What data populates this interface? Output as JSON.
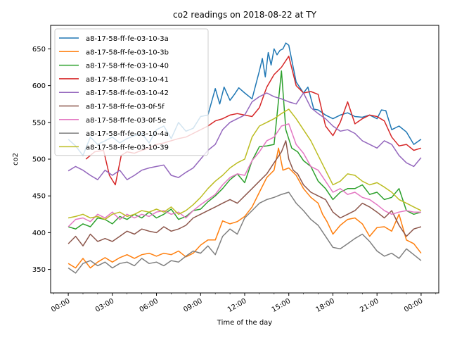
{
  "chart_data": {
    "type": "line",
    "title": "co2 readings on 2018-08-22 at TY",
    "xlabel": "Time of the day",
    "ylabel": "co2",
    "x_unit": "hour",
    "xlim": [
      -1.2,
      25.2
    ],
    "ylim": [
      318,
      682
    ],
    "x_ticks": [
      {
        "value": 0,
        "label": "00:00"
      },
      {
        "value": 3,
        "label": "03:00"
      },
      {
        "value": 6,
        "label": "06:00"
      },
      {
        "value": 9,
        "label": "09:00"
      },
      {
        "value": 12,
        "label": "12:00"
      },
      {
        "value": 15,
        "label": "15:00"
      },
      {
        "value": 18,
        "label": "18:00"
      },
      {
        "value": 21,
        "label": "21:00"
      },
      {
        "value": 24,
        "label": "00:00"
      }
    ],
    "y_ticks": [
      350,
      400,
      450,
      500,
      550,
      600,
      650
    ],
    "grid": false,
    "legend_position": "upper-left",
    "series": [
      {
        "name": "a8-17-58-ff-fe-03-10-3a",
        "color": "#1f77b4",
        "x": [
          0,
          0.5,
          1,
          1.5,
          2,
          2.5,
          3,
          3.5,
          4,
          4.5,
          5,
          5.5,
          6,
          6.5,
          7,
          7.5,
          8,
          8.5,
          9,
          9.5,
          10,
          10.3,
          10.6,
          11,
          11.3,
          11.6,
          12,
          12.5,
          13,
          13.2,
          13.4,
          13.6,
          13.8,
          14,
          14.2,
          14.4,
          14.6,
          14.8,
          15,
          15.5,
          16,
          16.3,
          16.7,
          17,
          17.5,
          18,
          18.5,
          19,
          19.5,
          20,
          20.5,
          21,
          21.3,
          21.6,
          22,
          22.5,
          23,
          23.5,
          24
        ],
        "values": [
          527,
          518,
          505,
          530,
          520,
          525,
          530,
          522,
          528,
          532,
          535,
          522,
          540,
          545,
          528,
          550,
          538,
          542,
          558,
          560,
          596,
          575,
          598,
          580,
          588,
          597,
          590,
          582,
          620,
          637,
          612,
          645,
          628,
          650,
          642,
          648,
          650,
          658,
          655,
          605,
          590,
          598,
          568,
          567,
          560,
          555,
          560,
          563,
          558,
          557,
          560,
          555,
          567,
          566,
          540,
          545,
          537,
          520,
          527
        ]
      },
      {
        "name": "a8-17-58-ff-fe-03-10-3b",
        "color": "#ff7f0e",
        "x": [
          0,
          0.5,
          1,
          1.5,
          2,
          2.5,
          3,
          3.5,
          4,
          4.5,
          5,
          5.5,
          6,
          6.5,
          7,
          7.5,
          8,
          8.5,
          9,
          9.5,
          10,
          10.5,
          11,
          11.5,
          12,
          12.5,
          13,
          13.5,
          14,
          14.3,
          14.6,
          15,
          15.5,
          16,
          16.5,
          17,
          17.3,
          17.6,
          18,
          18.5,
          19,
          19.5,
          20,
          20.5,
          21,
          21.5,
          22,
          22.5,
          23,
          23.5,
          24
        ],
        "values": [
          358,
          352,
          365,
          352,
          360,
          366,
          360,
          366,
          370,
          365,
          370,
          372,
          368,
          372,
          370,
          375,
          367,
          372,
          383,
          390,
          390,
          416,
          412,
          415,
          422,
          435,
          455,
          475,
          485,
          515,
          485,
          488,
          478,
          460,
          448,
          440,
          425,
          415,
          398,
          410,
          418,
          420,
          412,
          395,
          407,
          408,
          402,
          425,
          390,
          385,
          372
        ]
      },
      {
        "name": "a8-17-58-ff-fe-03-10-40",
        "color": "#2ca02c",
        "x": [
          0,
          0.5,
          1,
          1.5,
          2,
          2.5,
          3,
          3.5,
          4,
          4.5,
          5,
          5.5,
          6,
          6.5,
          7,
          7.5,
          8,
          8.5,
          9,
          9.5,
          10,
          10.5,
          11,
          11.5,
          12,
          12.5,
          13,
          13.5,
          14,
          14.5,
          14.8,
          15.2,
          15.6,
          16,
          16.5,
          17,
          17.5,
          18,
          18.5,
          19,
          19.5,
          20,
          20.5,
          21,
          21.5,
          22,
          22.5,
          23,
          23.5,
          24
        ],
        "values": [
          408,
          405,
          412,
          408,
          420,
          418,
          412,
          422,
          418,
          425,
          420,
          428,
          420,
          425,
          432,
          418,
          422,
          430,
          432,
          442,
          450,
          460,
          472,
          480,
          468,
          498,
          517,
          518,
          520,
          620,
          540,
          515,
          510,
          498,
          490,
          470,
          460,
          445,
          455,
          460,
          460,
          465,
          452,
          455,
          445,
          448,
          460,
          430,
          425,
          428
        ]
      },
      {
        "name": "a8-17-58-ff-fe-03-10-41",
        "color": "#d62728",
        "x": [
          1.2,
          1.8,
          2.4,
          2.8,
          3.2,
          3.6,
          4,
          4.5,
          5,
          5.5,
          6,
          6.5,
          7,
          7.5,
          8,
          8.5,
          9,
          9.5,
          10,
          10.5,
          11,
          11.5,
          12,
          12.5,
          13,
          13.5,
          14,
          14.5,
          15,
          15.5,
          16,
          16.5,
          17,
          17.5,
          18,
          18.5,
          19,
          19.5,
          20,
          20.5,
          21,
          21.5,
          22,
          22.5,
          23,
          23.5,
          24
        ],
        "values": [
          500,
          510,
          512,
          478,
          465,
          505,
          510,
          508,
          512,
          515,
          520,
          522,
          525,
          528,
          530,
          535,
          540,
          545,
          552,
          555,
          560,
          562,
          560,
          558,
          570,
          598,
          615,
          625,
          640,
          600,
          590,
          592,
          588,
          545,
          532,
          550,
          578,
          548,
          555,
          560,
          558,
          552,
          530,
          518,
          520,
          512,
          515
        ]
      },
      {
        "name": "a8-17-58-ff-fe-03-10-42",
        "color": "#9467bd",
        "x": [
          0,
          0.5,
          1,
          1.5,
          2,
          2.5,
          3,
          3.5,
          4,
          4.5,
          5,
          5.5,
          6,
          6.5,
          7,
          7.5,
          8,
          8.5,
          9,
          9.5,
          10,
          10.5,
          11,
          11.5,
          12,
          12.5,
          13,
          13.5,
          14,
          14.5,
          15,
          15.5,
          16,
          16.5,
          17,
          17.5,
          18,
          18.5,
          19,
          19.5,
          20,
          20.5,
          21,
          21.5,
          22,
          22.5,
          23,
          23.5,
          24
        ],
        "values": [
          484,
          490,
          485,
          478,
          472,
          485,
          478,
          485,
          472,
          478,
          485,
          488,
          490,
          492,
          478,
          475,
          482,
          488,
          500,
          512,
          520,
          540,
          550,
          555,
          560,
          578,
          585,
          590,
          585,
          582,
          578,
          575,
          590,
          570,
          562,
          555,
          545,
          538,
          540,
          535,
          525,
          520,
          515,
          525,
          520,
          505,
          495,
          490,
          502
        ]
      },
      {
        "name": "a8-17-58-ff-fe-03-0f-5f",
        "color": "#8c564b",
        "x": [
          0,
          0.5,
          1,
          1.5,
          2,
          2.5,
          3,
          3.5,
          4,
          4.5,
          5,
          5.5,
          6,
          6.5,
          7,
          7.5,
          8,
          8.5,
          9,
          9.5,
          10,
          10.5,
          11,
          11.5,
          12,
          12.5,
          13,
          13.5,
          14,
          14.5,
          14.8,
          15,
          15.3,
          15.6,
          16,
          16.5,
          17,
          17.5,
          18,
          18.5,
          19,
          19.5,
          20,
          20.5,
          21,
          21.5,
          22,
          22.5,
          23,
          23.5,
          24
        ],
        "values": [
          385,
          395,
          382,
          398,
          388,
          392,
          388,
          395,
          402,
          398,
          405,
          402,
          400,
          408,
          402,
          405,
          410,
          420,
          425,
          430,
          435,
          440,
          445,
          440,
          450,
          460,
          470,
          480,
          495,
          510,
          525,
          500,
          485,
          480,
          465,
          455,
          450,
          445,
          428,
          420,
          425,
          430,
          440,
          435,
          428,
          420,
          430,
          410,
          395,
          405,
          408
        ]
      },
      {
        "name": "a8-17-58-ff-fe-03-0f-5e",
        "color": "#e377c2",
        "x": [
          0,
          0.5,
          1,
          1.5,
          2,
          2.5,
          3,
          3.5,
          4,
          4.5,
          5,
          5.5,
          6,
          6.5,
          7,
          7.5,
          8,
          8.5,
          9,
          9.5,
          10,
          10.5,
          11,
          11.5,
          12,
          12.5,
          13,
          13.5,
          14,
          14.5,
          15,
          15.5,
          16,
          16.5,
          17,
          17.5,
          18,
          18.5,
          19,
          19.5,
          20,
          20.5,
          21,
          21.5,
          22,
          22.5,
          23,
          23.5,
          24
        ],
        "values": [
          408,
          418,
          420,
          415,
          425,
          420,
          428,
          418,
          425,
          420,
          425,
          422,
          428,
          430,
          425,
          428,
          420,
          430,
          438,
          445,
          452,
          465,
          475,
          480,
          478,
          498,
          510,
          525,
          530,
          545,
          548,
          520,
          508,
          490,
          485,
          470,
          455,
          460,
          452,
          455,
          448,
          445,
          438,
          430,
          425,
          428,
          430,
          428,
          428
        ]
      },
      {
        "name": "a8-17-58-ff-fe-03-10-4a",
        "color": "#7f7f7f",
        "x": [
          0,
          0.5,
          1,
          1.5,
          2,
          2.5,
          3,
          3.5,
          4,
          4.5,
          5,
          5.5,
          6,
          6.5,
          7,
          7.5,
          8,
          8.5,
          9,
          9.5,
          10,
          10.5,
          11,
          11.5,
          12,
          12.5,
          13,
          13.5,
          14,
          14.5,
          15,
          15.5,
          16,
          16.5,
          17,
          17.5,
          18,
          18.5,
          19,
          19.5,
          20,
          20.5,
          21,
          21.5,
          22,
          22.5,
          23,
          23.5,
          24
        ],
        "values": [
          352,
          345,
          358,
          362,
          355,
          360,
          352,
          358,
          360,
          355,
          365,
          358,
          360,
          355,
          362,
          360,
          368,
          375,
          372,
          382,
          370,
          395,
          405,
          398,
          420,
          430,
          440,
          445,
          448,
          452,
          455,
          440,
          430,
          418,
          410,
          395,
          380,
          378,
          385,
          392,
          398,
          388,
          375,
          368,
          372,
          365,
          378,
          370,
          362
        ]
      },
      {
        "name": "a8-17-58-ff-fe-03-10-39",
        "color": "#bcbd22",
        "x": [
          0,
          0.5,
          1,
          1.5,
          2,
          2.5,
          3,
          3.5,
          4,
          4.5,
          5,
          5.5,
          6,
          6.5,
          7,
          7.5,
          8,
          8.5,
          9,
          9.5,
          10,
          10.5,
          11,
          11.5,
          12,
          12.5,
          13,
          13.5,
          14,
          14.5,
          15,
          15.5,
          16,
          16.5,
          17,
          17.5,
          18,
          18.5,
          19,
          19.5,
          20,
          20.5,
          21,
          21.5,
          22,
          22.5,
          23,
          23.5,
          24
        ],
        "values": [
          420,
          422,
          425,
          420,
          422,
          418,
          425,
          428,
          422,
          425,
          430,
          428,
          432,
          428,
          435,
          425,
          430,
          438,
          448,
          460,
          470,
          478,
          488,
          495,
          500,
          530,
          545,
          550,
          555,
          562,
          568,
          555,
          540,
          525,
          505,
          485,
          465,
          470,
          480,
          478,
          470,
          465,
          468,
          462,
          455,
          445,
          440,
          435,
          430
        ]
      }
    ]
  }
}
